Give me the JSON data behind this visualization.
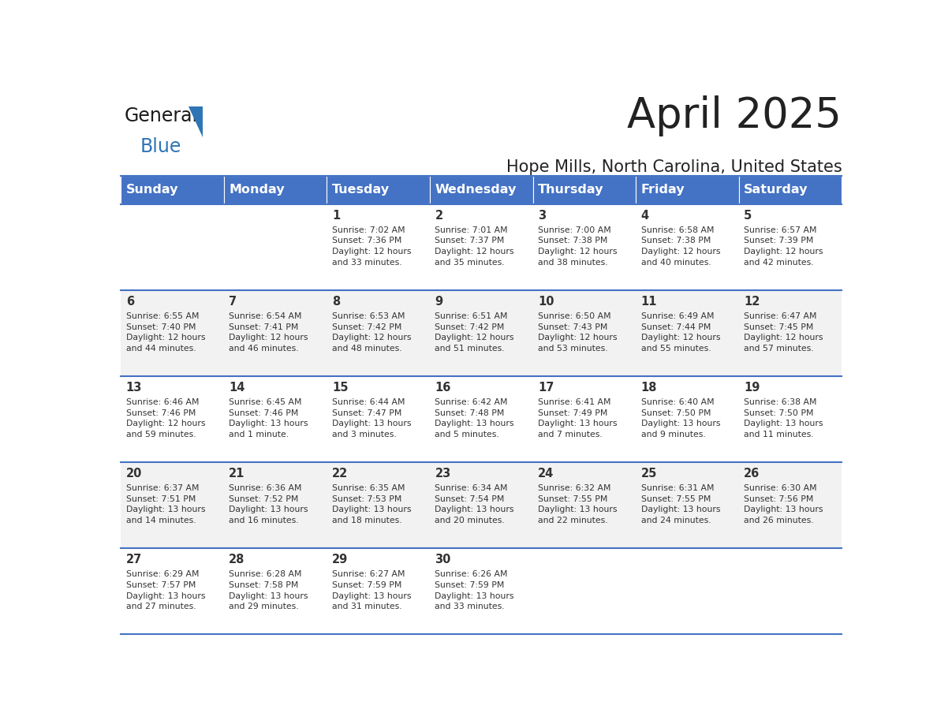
{
  "title": "April 2025",
  "subtitle": "Hope Mills, North Carolina, United States",
  "days_of_week": [
    "Sunday",
    "Monday",
    "Tuesday",
    "Wednesday",
    "Thursday",
    "Friday",
    "Saturday"
  ],
  "header_bg": "#4472C4",
  "header_text_color": "#FFFFFF",
  "odd_row_bg": "#FFFFFF",
  "even_row_bg": "#F2F2F2",
  "line_color": "#4472C4",
  "text_color": "#333333",
  "general_color": "#222222",
  "blue_color": "#2E75B6",
  "calendar_data": [
    [
      {
        "day": "",
        "text": ""
      },
      {
        "day": "",
        "text": ""
      },
      {
        "day": "1",
        "text": "Sunrise: 7:02 AM\nSunset: 7:36 PM\nDaylight: 12 hours\nand 33 minutes."
      },
      {
        "day": "2",
        "text": "Sunrise: 7:01 AM\nSunset: 7:37 PM\nDaylight: 12 hours\nand 35 minutes."
      },
      {
        "day": "3",
        "text": "Sunrise: 7:00 AM\nSunset: 7:38 PM\nDaylight: 12 hours\nand 38 minutes."
      },
      {
        "day": "4",
        "text": "Sunrise: 6:58 AM\nSunset: 7:38 PM\nDaylight: 12 hours\nand 40 minutes."
      },
      {
        "day": "5",
        "text": "Sunrise: 6:57 AM\nSunset: 7:39 PM\nDaylight: 12 hours\nand 42 minutes."
      }
    ],
    [
      {
        "day": "6",
        "text": "Sunrise: 6:55 AM\nSunset: 7:40 PM\nDaylight: 12 hours\nand 44 minutes."
      },
      {
        "day": "7",
        "text": "Sunrise: 6:54 AM\nSunset: 7:41 PM\nDaylight: 12 hours\nand 46 minutes."
      },
      {
        "day": "8",
        "text": "Sunrise: 6:53 AM\nSunset: 7:42 PM\nDaylight: 12 hours\nand 48 minutes."
      },
      {
        "day": "9",
        "text": "Sunrise: 6:51 AM\nSunset: 7:42 PM\nDaylight: 12 hours\nand 51 minutes."
      },
      {
        "day": "10",
        "text": "Sunrise: 6:50 AM\nSunset: 7:43 PM\nDaylight: 12 hours\nand 53 minutes."
      },
      {
        "day": "11",
        "text": "Sunrise: 6:49 AM\nSunset: 7:44 PM\nDaylight: 12 hours\nand 55 minutes."
      },
      {
        "day": "12",
        "text": "Sunrise: 6:47 AM\nSunset: 7:45 PM\nDaylight: 12 hours\nand 57 minutes."
      }
    ],
    [
      {
        "day": "13",
        "text": "Sunrise: 6:46 AM\nSunset: 7:46 PM\nDaylight: 12 hours\nand 59 minutes."
      },
      {
        "day": "14",
        "text": "Sunrise: 6:45 AM\nSunset: 7:46 PM\nDaylight: 13 hours\nand 1 minute."
      },
      {
        "day": "15",
        "text": "Sunrise: 6:44 AM\nSunset: 7:47 PM\nDaylight: 13 hours\nand 3 minutes."
      },
      {
        "day": "16",
        "text": "Sunrise: 6:42 AM\nSunset: 7:48 PM\nDaylight: 13 hours\nand 5 minutes."
      },
      {
        "day": "17",
        "text": "Sunrise: 6:41 AM\nSunset: 7:49 PM\nDaylight: 13 hours\nand 7 minutes."
      },
      {
        "day": "18",
        "text": "Sunrise: 6:40 AM\nSunset: 7:50 PM\nDaylight: 13 hours\nand 9 minutes."
      },
      {
        "day": "19",
        "text": "Sunrise: 6:38 AM\nSunset: 7:50 PM\nDaylight: 13 hours\nand 11 minutes."
      }
    ],
    [
      {
        "day": "20",
        "text": "Sunrise: 6:37 AM\nSunset: 7:51 PM\nDaylight: 13 hours\nand 14 minutes."
      },
      {
        "day": "21",
        "text": "Sunrise: 6:36 AM\nSunset: 7:52 PM\nDaylight: 13 hours\nand 16 minutes."
      },
      {
        "day": "22",
        "text": "Sunrise: 6:35 AM\nSunset: 7:53 PM\nDaylight: 13 hours\nand 18 minutes."
      },
      {
        "day": "23",
        "text": "Sunrise: 6:34 AM\nSunset: 7:54 PM\nDaylight: 13 hours\nand 20 minutes."
      },
      {
        "day": "24",
        "text": "Sunrise: 6:32 AM\nSunset: 7:55 PM\nDaylight: 13 hours\nand 22 minutes."
      },
      {
        "day": "25",
        "text": "Sunrise: 6:31 AM\nSunset: 7:55 PM\nDaylight: 13 hours\nand 24 minutes."
      },
      {
        "day": "26",
        "text": "Sunrise: 6:30 AM\nSunset: 7:56 PM\nDaylight: 13 hours\nand 26 minutes."
      }
    ],
    [
      {
        "day": "27",
        "text": "Sunrise: 6:29 AM\nSunset: 7:57 PM\nDaylight: 13 hours\nand 27 minutes."
      },
      {
        "day": "28",
        "text": "Sunrise: 6:28 AM\nSunset: 7:58 PM\nDaylight: 13 hours\nand 29 minutes."
      },
      {
        "day": "29",
        "text": "Sunrise: 6:27 AM\nSunset: 7:59 PM\nDaylight: 13 hours\nand 31 minutes."
      },
      {
        "day": "30",
        "text": "Sunrise: 6:26 AM\nSunset: 7:59 PM\nDaylight: 13 hours\nand 33 minutes."
      },
      {
        "day": "",
        "text": ""
      },
      {
        "day": "",
        "text": ""
      },
      {
        "day": "",
        "text": ""
      }
    ]
  ]
}
